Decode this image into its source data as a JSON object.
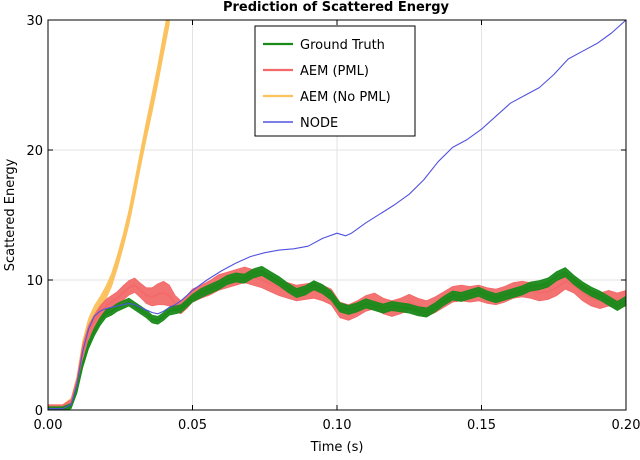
{
  "chart_data": {
    "type": "line",
    "title": "Prediction of Scattered Energy",
    "xlabel": "Time (s)",
    "ylabel": "Scattered Energy",
    "xlim": [
      0,
      0.2
    ],
    "ylim": [
      0,
      30
    ],
    "xticks": [
      0.0,
      0.05,
      0.1,
      0.15,
      0.2
    ],
    "xtick_labels": [
      "0.00",
      "0.05",
      "0.10",
      "0.15",
      "0.20"
    ],
    "yticks": [
      0,
      10,
      20,
      30
    ],
    "ytick_labels": [
      "0",
      "10",
      "20",
      "30"
    ],
    "grid": true,
    "legend_position": "top-center",
    "series": [
      {
        "name": "Ground Truth",
        "color": "#1a8a1a",
        "band": true,
        "x": [
          0.0,
          0.005,
          0.008,
          0.01,
          0.012,
          0.014,
          0.016,
          0.018,
          0.02,
          0.022,
          0.024,
          0.026,
          0.028,
          0.03,
          0.032,
          0.034,
          0.036,
          0.038,
          0.04,
          0.042,
          0.044,
          0.046,
          0.048,
          0.05,
          0.053,
          0.056,
          0.059,
          0.062,
          0.065,
          0.068,
          0.071,
          0.074,
          0.077,
          0.08,
          0.083,
          0.086,
          0.089,
          0.092,
          0.095,
          0.098,
          0.101,
          0.104,
          0.107,
          0.11,
          0.113,
          0.116,
          0.119,
          0.122,
          0.125,
          0.128,
          0.131,
          0.134,
          0.137,
          0.14,
          0.143,
          0.146,
          0.149,
          0.152,
          0.155,
          0.158,
          0.161,
          0.164,
          0.167,
          0.17,
          0.173,
          0.176,
          0.179,
          0.182,
          0.185,
          0.188,
          0.191,
          0.194,
          0.197,
          0.2
        ],
        "y": [
          0.1,
          0.1,
          0.3,
          1.5,
          3.5,
          5.0,
          6.0,
          6.8,
          7.4,
          7.6,
          7.9,
          8.1,
          8.3,
          8.0,
          7.7,
          7.4,
          7.0,
          6.9,
          7.2,
          7.6,
          7.7,
          7.8,
          8.2,
          8.6,
          9.0,
          9.3,
          9.6,
          10.0,
          10.2,
          10.1,
          10.5,
          10.7,
          10.3,
          9.9,
          9.4,
          9.0,
          9.2,
          9.6,
          9.3,
          8.8,
          7.9,
          7.7,
          7.9,
          8.2,
          8.0,
          7.8,
          8.0,
          7.9,
          7.8,
          7.6,
          7.5,
          7.9,
          8.4,
          8.8,
          8.7,
          8.9,
          9.1,
          8.8,
          8.6,
          8.8,
          9.0,
          9.2,
          9.5,
          9.6,
          9.8,
          10.3,
          10.6,
          10.0,
          9.5,
          9.1,
          8.8,
          8.4,
          8.0,
          8.4
        ],
        "spread": [
          0.15,
          0.15,
          0.2,
          0.2,
          0.25,
          0.3,
          0.3,
          0.3,
          0.3,
          0.3,
          0.3,
          0.3,
          0.3,
          0.3,
          0.3,
          0.3,
          0.3,
          0.3,
          0.3,
          0.3,
          0.3,
          0.3,
          0.3,
          0.3,
          0.35,
          0.35,
          0.35,
          0.35,
          0.35,
          0.35,
          0.35,
          0.35,
          0.35,
          0.35,
          0.35,
          0.35,
          0.35,
          0.35,
          0.35,
          0.35,
          0.35,
          0.35,
          0.35,
          0.35,
          0.35,
          0.35,
          0.35,
          0.35,
          0.35,
          0.35,
          0.35,
          0.35,
          0.35,
          0.35,
          0.35,
          0.35,
          0.35,
          0.35,
          0.35,
          0.35,
          0.35,
          0.35,
          0.35,
          0.35,
          0.35,
          0.35,
          0.35,
          0.35,
          0.35,
          0.35,
          0.35,
          0.35,
          0.35,
          0.35
        ]
      },
      {
        "name": "AEM (PML)",
        "color": "#f26a6a",
        "band": true,
        "x": [
          0.0,
          0.005,
          0.008,
          0.01,
          0.012,
          0.014,
          0.016,
          0.018,
          0.02,
          0.022,
          0.024,
          0.026,
          0.028,
          0.03,
          0.032,
          0.034,
          0.036,
          0.038,
          0.04,
          0.042,
          0.044,
          0.046,
          0.048,
          0.05,
          0.053,
          0.056,
          0.059,
          0.062,
          0.065,
          0.068,
          0.071,
          0.074,
          0.077,
          0.08,
          0.083,
          0.086,
          0.089,
          0.092,
          0.095,
          0.098,
          0.101,
          0.104,
          0.107,
          0.11,
          0.113,
          0.116,
          0.119,
          0.122,
          0.125,
          0.128,
          0.131,
          0.134,
          0.137,
          0.14,
          0.143,
          0.146,
          0.149,
          0.152,
          0.155,
          0.158,
          0.161,
          0.164,
          0.167,
          0.17,
          0.173,
          0.176,
          0.179,
          0.182,
          0.185,
          0.188,
          0.191,
          0.194,
          0.197,
          0.2
        ],
        "y": [
          0.2,
          0.2,
          0.5,
          2.0,
          4.5,
          6.0,
          6.8,
          7.5,
          8.0,
          8.3,
          8.6,
          9.0,
          9.4,
          9.6,
          9.2,
          8.8,
          8.7,
          8.9,
          9.0,
          8.8,
          8.2,
          7.9,
          8.3,
          8.8,
          9.1,
          9.4,
          9.8,
          10.0,
          10.2,
          10.4,
          10.2,
          10.0,
          9.7,
          9.4,
          9.2,
          9.0,
          9.1,
          9.2,
          9.0,
          8.7,
          7.7,
          7.5,
          7.8,
          8.2,
          8.4,
          8.0,
          7.8,
          8.0,
          8.3,
          8.0,
          7.8,
          8.1,
          8.5,
          8.9,
          9.0,
          8.9,
          9.0,
          8.8,
          8.7,
          8.9,
          9.2,
          9.3,
          9.2,
          9.0,
          9.1,
          9.4,
          9.9,
          9.6,
          9.0,
          8.6,
          8.4,
          8.6,
          8.4,
          8.6
        ],
        "spread": [
          0.2,
          0.2,
          0.3,
          0.4,
          0.5,
          0.5,
          0.5,
          0.5,
          0.5,
          0.5,
          0.5,
          0.55,
          0.55,
          0.55,
          0.55,
          0.6,
          0.7,
          0.8,
          0.9,
          0.8,
          0.6,
          0.5,
          0.5,
          0.5,
          0.5,
          0.55,
          0.6,
          0.6,
          0.6,
          0.6,
          0.6,
          0.6,
          0.6,
          0.6,
          0.6,
          0.6,
          0.6,
          0.6,
          0.6,
          0.6,
          0.6,
          0.6,
          0.6,
          0.6,
          0.6,
          0.6,
          0.6,
          0.6,
          0.6,
          0.6,
          0.6,
          0.6,
          0.6,
          0.6,
          0.6,
          0.6,
          0.6,
          0.6,
          0.6,
          0.6,
          0.6,
          0.6,
          0.6,
          0.6,
          0.6,
          0.6,
          0.6,
          0.6,
          0.6,
          0.6,
          0.6,
          0.6,
          0.6,
          0.6
        ]
      },
      {
        "name": "AEM (No PML)",
        "color": "#fbc15c",
        "band": true,
        "x": [
          0.0,
          0.005,
          0.008,
          0.01,
          0.012,
          0.014,
          0.016,
          0.018,
          0.02,
          0.022,
          0.024,
          0.026,
          0.028,
          0.03,
          0.032,
          0.034,
          0.036,
          0.038,
          0.04,
          0.042
        ],
        "y": [
          0.2,
          0.2,
          0.6,
          2.2,
          4.8,
          6.5,
          7.5,
          8.2,
          9.0,
          10.0,
          11.4,
          13.0,
          14.8,
          17.0,
          19.3,
          21.5,
          23.6,
          25.8,
          28.2,
          30.5
        ],
        "spread": [
          0.2,
          0.2,
          0.3,
          0.4,
          0.5,
          0.5,
          0.5,
          0.5,
          0.5,
          0.5,
          0.5,
          0.5,
          0.55,
          0.6,
          0.6,
          0.65,
          0.7,
          0.7,
          0.75,
          0.8
        ]
      },
      {
        "name": "NODE",
        "color": "#5252e0",
        "band": false,
        "x": [
          0.0,
          0.005,
          0.008,
          0.01,
          0.012,
          0.014,
          0.016,
          0.018,
          0.02,
          0.022,
          0.024,
          0.026,
          0.028,
          0.03,
          0.032,
          0.034,
          0.036,
          0.038,
          0.04,
          0.042,
          0.044,
          0.046,
          0.048,
          0.05,
          0.055,
          0.06,
          0.065,
          0.07,
          0.075,
          0.08,
          0.085,
          0.09,
          0.095,
          0.1,
          0.103,
          0.105,
          0.11,
          0.115,
          0.12,
          0.125,
          0.13,
          0.135,
          0.14,
          0.145,
          0.15,
          0.155,
          0.16,
          0.165,
          0.17,
          0.175,
          0.18,
          0.185,
          0.19,
          0.195,
          0.2
        ],
        "y": [
          0.1,
          0.1,
          0.4,
          2.0,
          4.5,
          6.2,
          7.2,
          7.6,
          7.8,
          7.9,
          8.0,
          8.1,
          8.2,
          8.1,
          7.9,
          7.7,
          7.5,
          7.4,
          7.6,
          7.9,
          8.1,
          8.4,
          8.8,
          9.2,
          10.0,
          10.7,
          11.3,
          11.8,
          12.1,
          12.3,
          12.4,
          12.6,
          13.2,
          13.6,
          13.4,
          13.6,
          14.4,
          15.1,
          15.8,
          16.6,
          17.7,
          19.1,
          20.2,
          20.8,
          21.6,
          22.6,
          23.6,
          24.2,
          24.8,
          25.8,
          27.0,
          27.6,
          28.2,
          29.0,
          30.0
        ],
        "spread": []
      }
    ]
  }
}
